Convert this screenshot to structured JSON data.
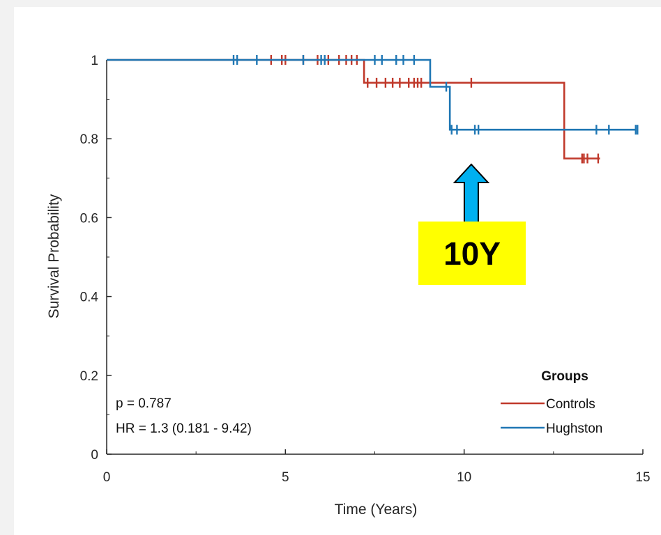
{
  "chart_data": {
    "type": "line",
    "subtype": "kaplan-meier",
    "xlabel": "Time (Years)",
    "ylabel": "Survival Probability",
    "xlim": [
      0,
      15
    ],
    "ylim": [
      0,
      1
    ],
    "x_ticks": [
      "0",
      "5",
      "10",
      "15"
    ],
    "y_ticks": [
      "0",
      "0.2",
      "0.4",
      "0.6",
      "0.8",
      "1"
    ],
    "grid": false,
    "legend": {
      "title": "Groups",
      "placement": "bottom-right",
      "entries": [
        "Controls",
        "Hughston"
      ]
    },
    "series": [
      {
        "name": "Controls",
        "color": "#c0392b",
        "steps": [
          [
            0,
            1
          ],
          [
            7.2,
            0.942
          ],
          [
            12.8,
            0.75
          ],
          [
            13.8,
            0.75
          ]
        ],
        "censored": [
          [
            4.6,
            1
          ],
          [
            4.9,
            1
          ],
          [
            5.0,
            1
          ],
          [
            5.5,
            1
          ],
          [
            5.9,
            1
          ],
          [
            6.2,
            1
          ],
          [
            6.5,
            1
          ],
          [
            6.7,
            1
          ],
          [
            6.85,
            1
          ],
          [
            7.0,
            1
          ],
          [
            7.3,
            0.942
          ],
          [
            7.55,
            0.942
          ],
          [
            7.8,
            0.942
          ],
          [
            8.0,
            0.942
          ],
          [
            8.2,
            0.942
          ],
          [
            8.45,
            0.942
          ],
          [
            8.6,
            0.942
          ],
          [
            8.7,
            0.942
          ],
          [
            8.8,
            0.942
          ],
          [
            10.2,
            0.942
          ],
          [
            13.3,
            0.75
          ],
          [
            13.35,
            0.75
          ],
          [
            13.45,
            0.75
          ],
          [
            13.75,
            0.75
          ]
        ]
      },
      {
        "name": "Hughston",
        "color": "#1f77b4",
        "steps": [
          [
            0,
            1
          ],
          [
            9.05,
            0.932
          ],
          [
            9.6,
            0.823
          ],
          [
            14.8,
            0.823
          ]
        ],
        "censored": [
          [
            3.55,
            1
          ],
          [
            3.65,
            1
          ],
          [
            4.2,
            1
          ],
          [
            5.5,
            1
          ],
          [
            6.0,
            1
          ],
          [
            6.1,
            1
          ],
          [
            7.5,
            1
          ],
          [
            7.7,
            1
          ],
          [
            8.1,
            1
          ],
          [
            8.3,
            1
          ],
          [
            8.6,
            1
          ],
          [
            9.5,
            0.932
          ],
          [
            9.65,
            0.823
          ],
          [
            9.8,
            0.823
          ],
          [
            10.3,
            0.823
          ],
          [
            10.4,
            0.823
          ],
          [
            13.7,
            0.823
          ],
          [
            14.05,
            0.823
          ],
          [
            14.8,
            0.823
          ],
          [
            14.85,
            0.823
          ]
        ]
      }
    ],
    "annotations": {
      "p_value": "p = 0.787",
      "hazard_ratio": "HR = 1.3 (0.181 - 9.42)",
      "callout": "10Y",
      "callout_arrow_x": 10.2
    }
  },
  "colors": {
    "callout_box": "#ffff00",
    "callout_arrow": "#00b0f0"
  }
}
